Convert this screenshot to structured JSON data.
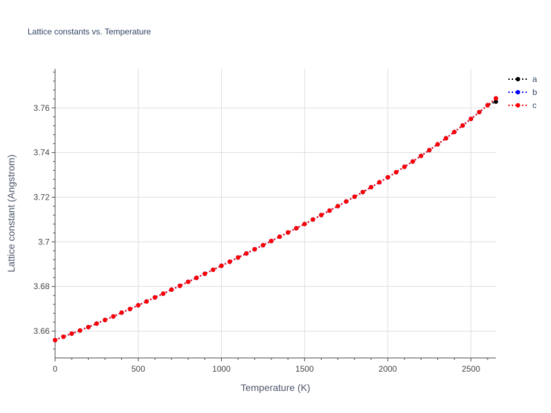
{
  "chart_data": {
    "type": "line",
    "title": "Lattice constants vs. Temperature",
    "xlabel": "Temperature (K)",
    "ylabel": "Lattice constant (Angstrom)",
    "xlim": [
      0,
      2650
    ],
    "ylim": [
      3.648,
      3.7775
    ],
    "x_ticks": [
      0,
      500,
      1000,
      1500,
      2000,
      2500
    ],
    "x_tick_labels": [
      "0",
      "500",
      "1000",
      "1500",
      "2000",
      "2500"
    ],
    "y_ticks": [
      3.66,
      3.68,
      3.7,
      3.72,
      3.74,
      3.76
    ],
    "y_tick_labels": [
      "3.66",
      "3.68",
      "3.7",
      "3.72",
      "3.74",
      "3.76"
    ],
    "grid": true,
    "legend_position": "top-right outside",
    "series": [
      {
        "name": "a",
        "color": "#000000",
        "line_style": "dotted",
        "marker": "circle"
      },
      {
        "name": "b",
        "color": "#0000ff",
        "line_style": "dotted",
        "marker": "circle"
      },
      {
        "name": "c",
        "color": "#ff0000",
        "line_style": "dotted",
        "marker": "circle"
      }
    ],
    "x": [
      0,
      50,
      100,
      150,
      200,
      250,
      300,
      350,
      400,
      450,
      500,
      550,
      600,
      650,
      700,
      750,
      800,
      850,
      900,
      950,
      1000,
      1050,
      1100,
      1150,
      1200,
      1250,
      1300,
      1350,
      1400,
      1450,
      1500,
      1550,
      1600,
      1650,
      1700,
      1750,
      1800,
      1850,
      1900,
      1950,
      2000,
      2050,
      2100,
      2150,
      2200,
      2250,
      2300,
      2350,
      2400,
      2450,
      2500,
      2550,
      2600,
      2650
    ],
    "y": [
      3.656,
      3.6575,
      3.6589,
      3.6603,
      3.6618,
      3.6634,
      3.665,
      3.6666,
      3.6683,
      3.6699,
      3.6716,
      3.6733,
      3.6751,
      3.6768,
      3.6786,
      3.6803,
      3.6821,
      3.6839,
      3.6857,
      3.6875,
      3.6893,
      3.6911,
      3.693,
      3.6948,
      3.6967,
      3.6985,
      3.7004,
      3.7023,
      3.7042,
      3.7061,
      3.708,
      3.71,
      3.712,
      3.714,
      3.716,
      3.7181,
      3.7202,
      3.7223,
      3.7245,
      3.7267,
      3.7289,
      3.7312,
      3.7336,
      3.736,
      3.7385,
      3.7411,
      3.7437,
      3.7464,
      3.7492,
      3.7521,
      3.7551,
      3.7581,
      3.7612,
      3.7643
    ],
    "y_offset_a_at_end": -0.0015
  }
}
